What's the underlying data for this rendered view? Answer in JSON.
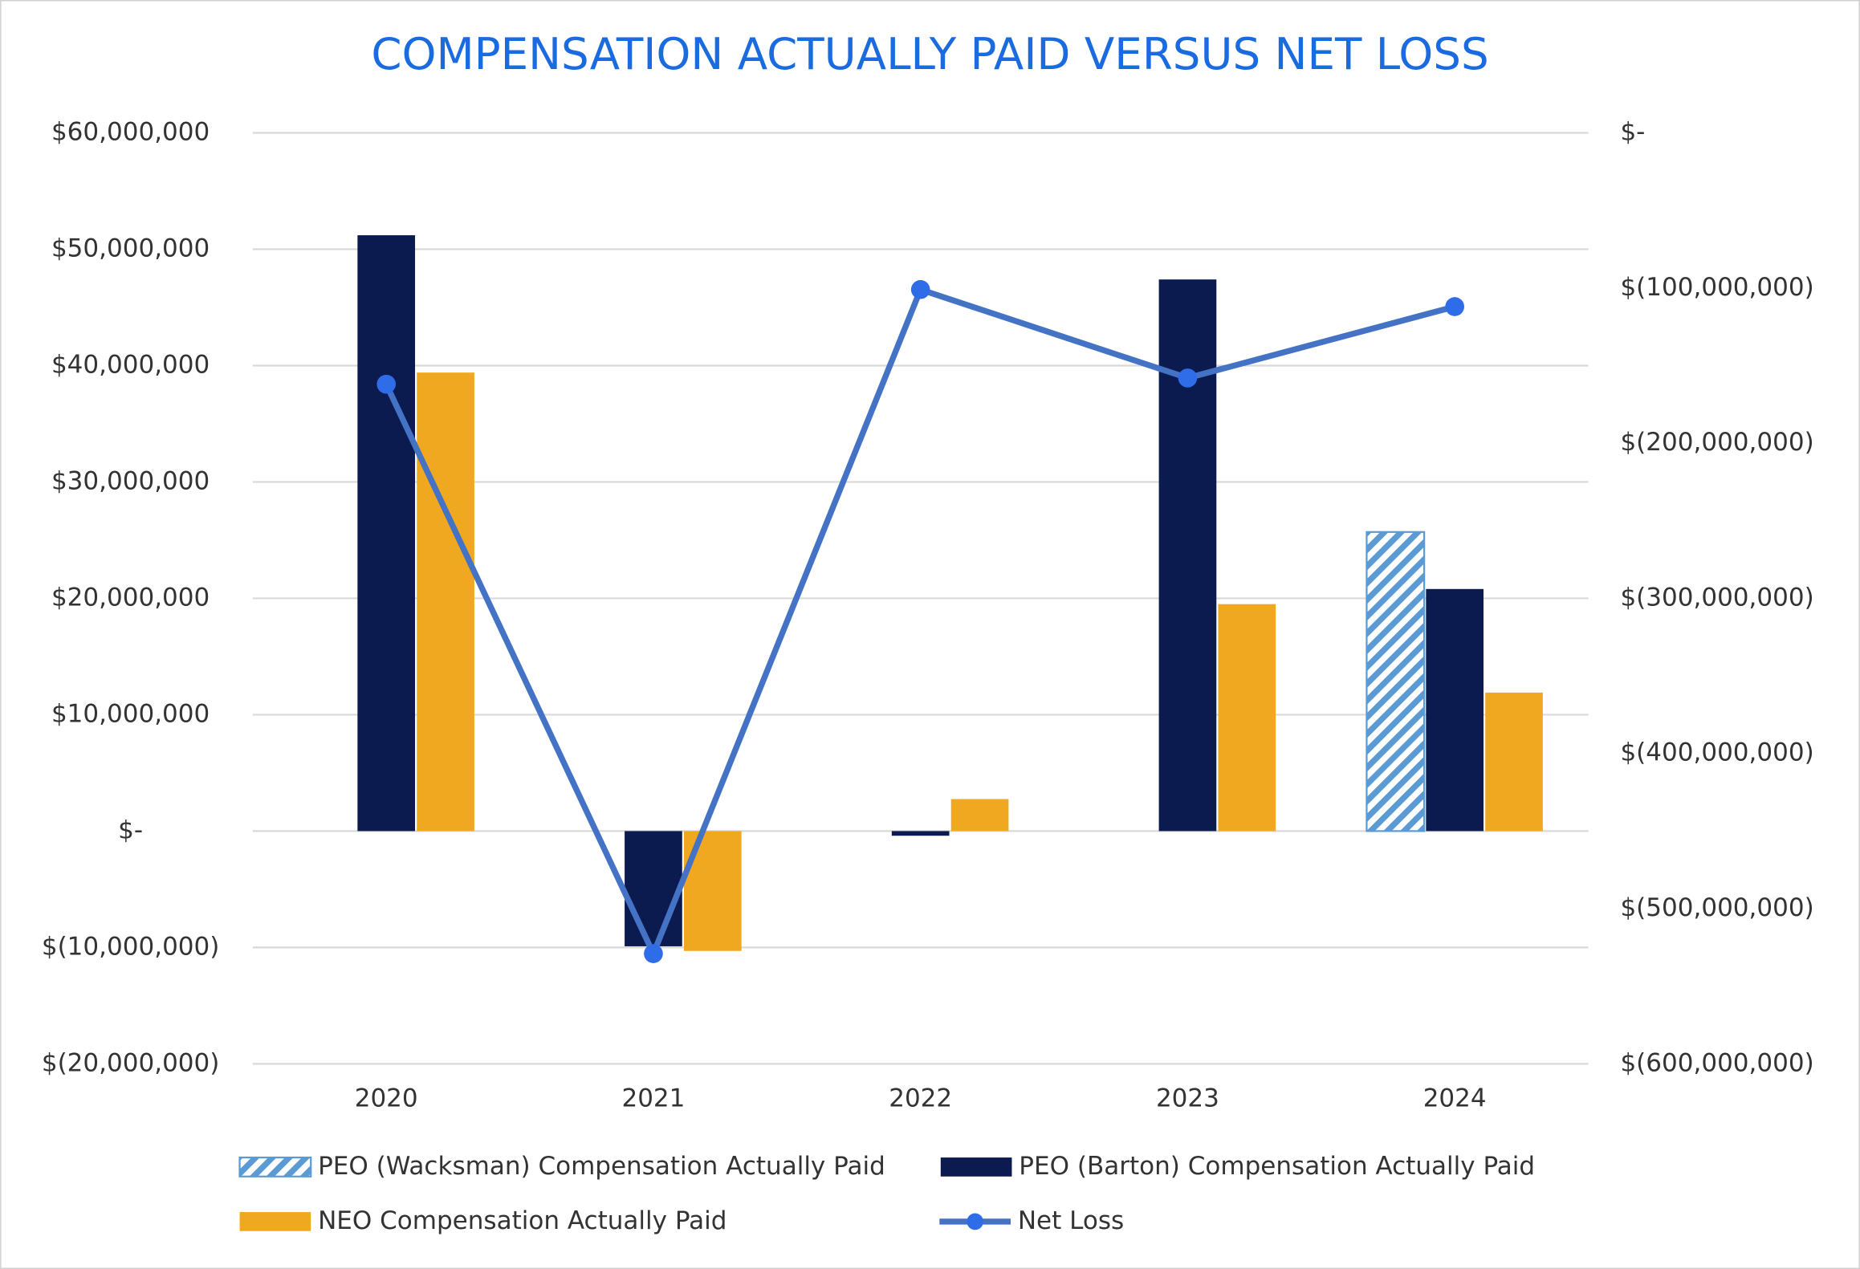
{
  "chart_data": {
    "type": "bar",
    "title": "COMPENSATION ACTUALLY PAID VERSUS NET LOSS",
    "categories": [
      "2020",
      "2021",
      "2022",
      "2023",
      "2024"
    ],
    "series": [
      {
        "name": "PEO (Wacksman) Compensation Actually Paid",
        "color": "#5b9bd5",
        "pattern": "hatch",
        "values": [
          null,
          null,
          null,
          null,
          25700000
        ]
      },
      {
        "name": "PEO (Barton) Compensation Actually Paid",
        "color": "#0b1a4f",
        "values": [
          51200000,
          -9900000,
          -400000,
          47400000,
          20800000
        ]
      },
      {
        "name": "NEO Compensation Actually Paid",
        "color": "#f0a820",
        "values": [
          39400000,
          -10300000,
          2750000,
          19500000,
          11900000
        ]
      },
      {
        "name": "Net Loss",
        "type": "line",
        "axis": "y2",
        "color": "#4472c4",
        "marker_color": "#2f6de8",
        "values": [
          -162000000,
          -529000000,
          -101000000,
          -158000000,
          -112000000
        ]
      }
    ],
    "ylim": [
      -20000000,
      60000000
    ],
    "yticks": [
      {
        "value": -20000000,
        "label": "$(20,000,000)"
      },
      {
        "value": -10000000,
        "label": "$(10,000,000)"
      },
      {
        "value": 0,
        "label": "$-"
      },
      {
        "value": 10000000,
        "label": "$10,000,000"
      },
      {
        "value": 20000000,
        "label": "$20,000,000"
      },
      {
        "value": 30000000,
        "label": "$30,000,000"
      },
      {
        "value": 40000000,
        "label": "$40,000,000"
      },
      {
        "value": 50000000,
        "label": "$50,000,000"
      },
      {
        "value": 60000000,
        "label": "$60,000,000"
      }
    ],
    "y2lim": [
      -600000000,
      0
    ],
    "y2ticks": [
      {
        "value": -600000000,
        "label": "$(600,000,000)"
      },
      {
        "value": -500000000,
        "label": "$(500,000,000)"
      },
      {
        "value": -400000000,
        "label": "$(400,000,000)"
      },
      {
        "value": -300000000,
        "label": "$(300,000,000)"
      },
      {
        "value": -200000000,
        "label": "$(200,000,000)"
      },
      {
        "value": -100000000,
        "label": "$(100,000,000)"
      },
      {
        "value": 0,
        "label": "$-"
      }
    ],
    "grid": true,
    "legend": "bottom"
  }
}
